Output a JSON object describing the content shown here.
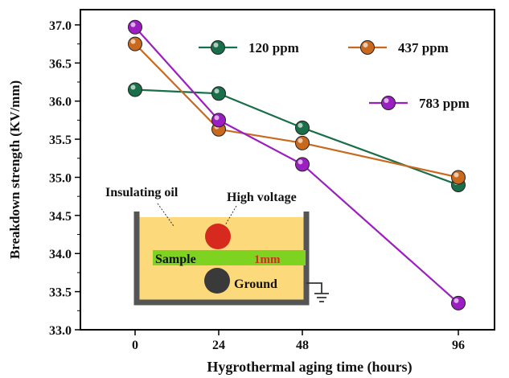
{
  "chart_data": {
    "type": "line",
    "title": "",
    "xlabel": "Hygrothermal aging time (hours)",
    "ylabel": "Breakdown strength (KV/mm)",
    "x_tick_labels": [
      "0",
      "24",
      "48",
      "96"
    ],
    "x_values": [
      0,
      24,
      48,
      96
    ],
    "ylim": [
      33.0,
      37.2
    ],
    "y_ticks": [
      "33.0",
      "33.5",
      "34.0",
      "34.5",
      "35.0",
      "35.5",
      "36.0",
      "36.5",
      "37.0"
    ],
    "grid": false,
    "legend_position": "top",
    "series": [
      {
        "name": "120 ppm",
        "color": "#1a6e4a",
        "values": [
          36.15,
          36.1,
          35.65,
          34.9
        ]
      },
      {
        "name": "437 ppm",
        "color": "#c8691e",
        "values": [
          36.75,
          35.63,
          35.45,
          35.0
        ]
      },
      {
        "name": "783 ppm",
        "color": "#9b1fc0",
        "values": [
          36.97,
          35.75,
          35.17,
          33.35
        ]
      }
    ]
  },
  "inset": {
    "oil_label": "Insulating oil",
    "voltage_label": "High voltage",
    "sample_label": "Sample",
    "gap_label": "1mm",
    "ground_label": "Ground",
    "colors": {
      "oil": "#fcd97a",
      "sample": "#7ed321",
      "hv_electrode": "#d62a1e",
      "ground_electrode": "#3a3a3a",
      "gap_text": "#d62a1e",
      "tank": "#555555"
    }
  }
}
